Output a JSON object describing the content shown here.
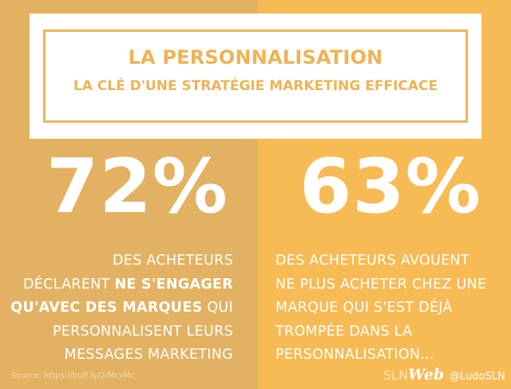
{
  "title": {
    "main": "LA PERSONNALISATION",
    "subtitle": "LA CLÉ D'UNE STRATÉGIE MARKETING EFFICACE"
  },
  "stats": {
    "left": {
      "value": "72%",
      "lines": [
        {
          "pre": "DES ACHETEURS",
          "bold": "",
          "post": ""
        },
        {
          "pre": "DÉCLARENT ",
          "bold": "NE S'ENGAGER",
          "post": ""
        },
        {
          "pre": "",
          "bold": "QU'AVEC DES MARQUES",
          "post": " QUI"
        },
        {
          "pre": "PERSONNALISENT LEURS",
          "bold": "",
          "post": ""
        },
        {
          "pre": "MESSAGES MARKETING",
          "bold": "",
          "post": ""
        }
      ]
    },
    "right": {
      "value": "63%",
      "lines": [
        "DES ACHETEURS AVOUENT",
        "NE PLUS ACHETER CHEZ UNE",
        "MARQUE QUI S'EST DÉJÀ",
        "TROMPÉE DANS LA",
        "PERSONNALISATION..."
      ]
    }
  },
  "footer": {
    "source": "Source: https://buff.ly/2iMcvMc",
    "brand_sln": "SLN",
    "brand_web": "Web",
    "handle": "@LudoSLN"
  },
  "colors": {
    "left_bg": "#e2b262",
    "right_bg": "#f7bb55",
    "title_text": "#edb354",
    "stat_text": "#ffffff"
  }
}
